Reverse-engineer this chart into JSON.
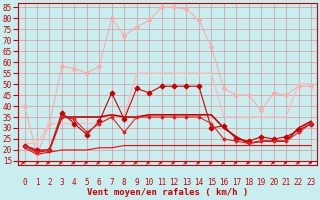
{
  "title": "",
  "xlabel": "Vent moyen/en rafales ( km/h )",
  "x_labels": [
    "0",
    "1",
    "2",
    "3",
    "4",
    "5",
    "6",
    "7",
    "8",
    "9",
    "10",
    "11",
    "12",
    "13",
    "14",
    "15",
    "16",
    "17",
    "18",
    "19",
    "20",
    "21",
    "22",
    "23"
  ],
  "yticks": [
    15,
    20,
    25,
    30,
    35,
    40,
    45,
    50,
    55,
    60,
    65,
    70,
    75,
    80,
    85
  ],
  "ylim": [
    13,
    87
  ],
  "xlim": [
    -0.5,
    23.5
  ],
  "background_color": "#c8eef0",
  "grid_color": "#e08080",
  "series": [
    {
      "name": "rafales_max",
      "color": "#ffaaaa",
      "marker": "D",
      "markersize": 2.0,
      "linewidth": 0.8,
      "y": [
        40,
        18,
        32,
        58,
        57,
        55,
        58,
        80,
        72,
        76,
        79,
        85,
        85,
        84,
        79,
        67,
        48,
        45,
        45,
        38,
        46,
        45,
        49,
        49
      ]
    },
    {
      "name": "rafales_moy_band",
      "color": "#ffbbbb",
      "marker": null,
      "markersize": 0,
      "linewidth": 1.0,
      "y": [
        23,
        23,
        32,
        32,
        32,
        32,
        32,
        35,
        35,
        55,
        55,
        55,
        55,
        55,
        55,
        55,
        35,
        35,
        35,
        35,
        35,
        35,
        50,
        50
      ]
    },
    {
      "name": "vent_max",
      "color": "#cc0000",
      "marker": "P",
      "markersize": 3.0,
      "linewidth": 0.8,
      "y": [
        22,
        20,
        20,
        37,
        32,
        27,
        33,
        46,
        34,
        48,
        46,
        49,
        49,
        49,
        49,
        30,
        31,
        25,
        24,
        26,
        25,
        26,
        29,
        32
      ]
    },
    {
      "name": "vent_moy_upper",
      "color": "#cc0000",
      "marker": null,
      "markersize": 0,
      "linewidth": 1.2,
      "y": [
        22,
        19,
        20,
        35,
        35,
        35,
        35,
        36,
        35,
        35,
        36,
        36,
        36,
        36,
        36,
        36,
        30,
        26,
        23,
        24,
        24,
        24,
        30,
        33
      ]
    },
    {
      "name": "vent_min_line",
      "color": "#ff0000",
      "marker": null,
      "markersize": 0,
      "linewidth": 0.8,
      "y": [
        21,
        18,
        19,
        20,
        20,
        20,
        21,
        21,
        22,
        22,
        22,
        22,
        22,
        22,
        22,
        22,
        22,
        22,
        22,
        22,
        22,
        22,
        22,
        22
      ]
    },
    {
      "name": "vent_vitesse",
      "color": "#dd2222",
      "marker": "D",
      "markersize": 1.5,
      "linewidth": 0.8,
      "y": [
        22,
        19,
        20,
        35,
        34,
        28,
        32,
        35,
        28,
        35,
        35,
        35,
        35,
        35,
        35,
        32,
        25,
        24,
        23,
        24,
        24,
        24,
        28,
        32
      ]
    }
  ],
  "arrow_angles": [
    45,
    55,
    40,
    35,
    25,
    20,
    30,
    35,
    30,
    35,
    30,
    30,
    25,
    25,
    20,
    10,
    5,
    5,
    5,
    5,
    5,
    5,
    5,
    5
  ],
  "arrow_color": "#cc0000",
  "label_color": "#cc0000",
  "tick_fontsize": 5.5,
  "xlabel_fontsize": 6.5
}
